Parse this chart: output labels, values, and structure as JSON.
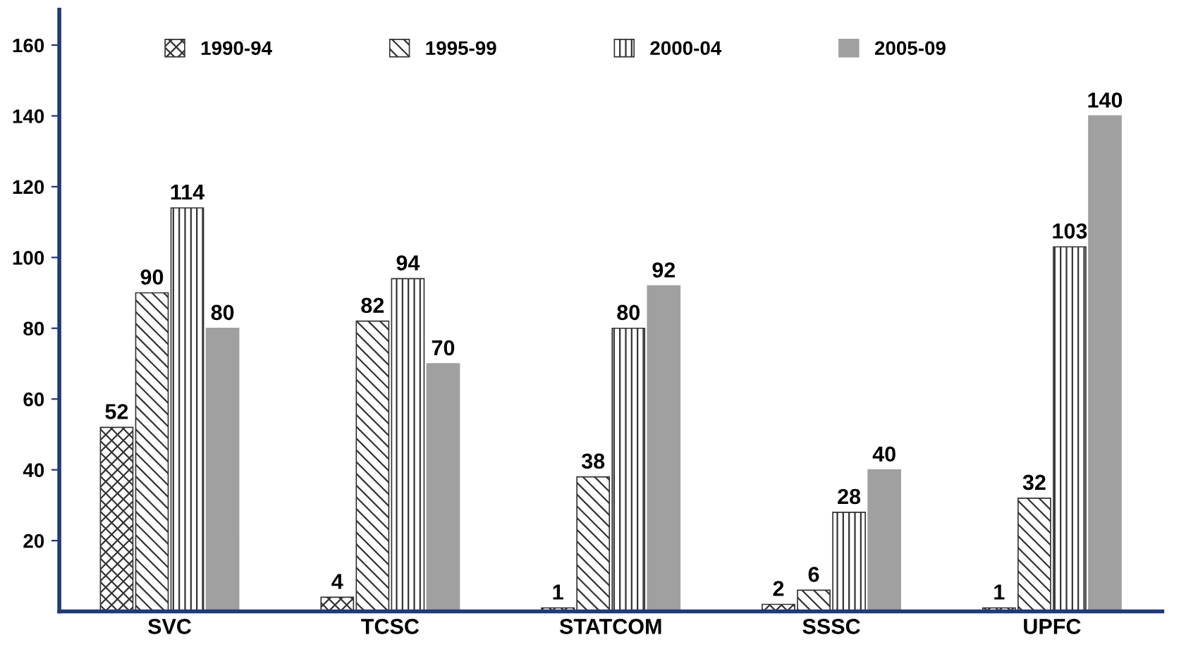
{
  "chart_data": {
    "type": "bar",
    "categories": [
      "SVC",
      "TCSC",
      "STATCOM",
      "SSSC",
      "UPFC"
    ],
    "series": [
      {
        "name": "1990-94",
        "color": "#333333",
        "values": [
          52,
          4,
          1,
          2,
          1
        ]
      },
      {
        "name": "1995-99",
        "color": "#333333",
        "values": [
          90,
          82,
          38,
          6,
          32
        ]
      },
      {
        "name": "2000-04",
        "color": "#333333",
        "values": [
          114,
          94,
          80,
          28,
          103
        ]
      },
      {
        "name": "2005-09",
        "color": "#a0a0a0",
        "values": [
          80,
          70,
          92,
          40,
          140
        ]
      }
    ],
    "ylim": [
      0,
      170
    ],
    "yticks": [
      20,
      40,
      60,
      80,
      100,
      120,
      140,
      160
    ],
    "data_labels": true,
    "legend": "top",
    "grid": false
  }
}
